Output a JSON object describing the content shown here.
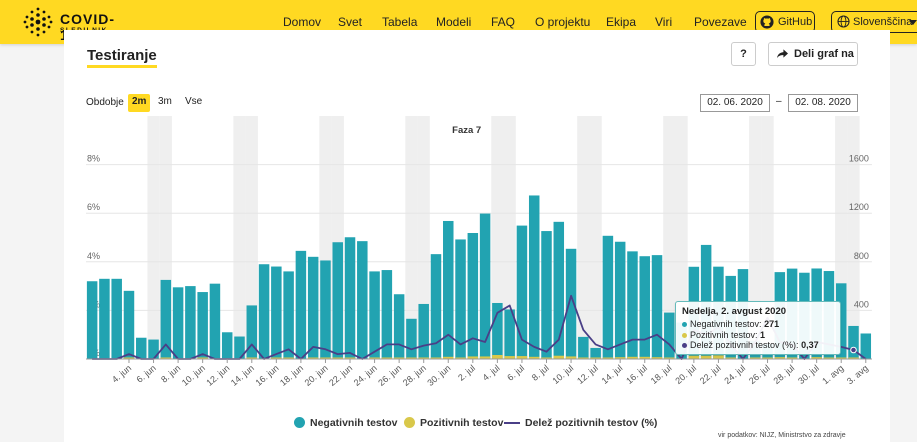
{
  "header": {
    "logo_title": "COVID-19",
    "logo_sub": "SLEDILNIK",
    "nav": [
      "Domov",
      "Svet",
      "Tabela",
      "Modeli",
      "FAQ",
      "O projektu",
      "Ekipa",
      "Viri",
      "Povezave"
    ],
    "active_nav": "Domov",
    "github_label": "GitHub",
    "language_label": "Slovenščina"
  },
  "card": {
    "title": "Testiranje",
    "help_label": "?",
    "share_label": "Deli graf na",
    "period_label": "Obdobje",
    "ranges": [
      "2m",
      "3m",
      "Vse"
    ],
    "selected_range": "2m",
    "date_from": "02. 06. 2020",
    "date_to": "02. 08. 2020",
    "date_separator": "–",
    "legend": {
      "negative": "Negativnih testov",
      "positive": "Pozitivnih testov",
      "share": "Delež pozitivnih testov (%)"
    },
    "source": "vir podatkov: NIJZ, Ministrstvo za zdravje"
  },
  "tooltip": {
    "title": "Nedelja, 2. avgust 2020",
    "negative_label": "Negativnih testov:",
    "negative_value": "271",
    "positive_label": "Pozitivnih testov:",
    "positive_value": "1",
    "share_label": "Delež pozitivnih testov (%):",
    "share_value": "0,37"
  },
  "colors": {
    "negative": "#22a3b1",
    "positive": "#d9c84a",
    "share": "#4a3f87",
    "accent": "#ffd922"
  },
  "chart_data": {
    "type": "bar",
    "plot_band_label": "Faza 7",
    "categories": [
      "1. jun",
      "2. jun",
      "3. jun",
      "4. jun",
      "5. jun",
      "6. jun",
      "7. jun",
      "8. jun",
      "9. jun",
      "10. jun",
      "11. jun",
      "12. jun",
      "13. jun",
      "14. jun",
      "15. jun",
      "16. jun",
      "17. jun",
      "18. jun",
      "19. jun",
      "20. jun",
      "21. jun",
      "22. jun",
      "23. jun",
      "24. jun",
      "25. jun",
      "26. jun",
      "27. jun",
      "28. jun",
      "29. jun",
      "30. jun",
      "1. jul",
      "2. jul",
      "3. jul",
      "4. jul",
      "5. jul",
      "6. jul",
      "7. jul",
      "8. jul",
      "9. jul",
      "10. jul",
      "11. jul",
      "12. jul",
      "13. jul",
      "14. jul",
      "15. jul",
      "16. jul",
      "17. jul",
      "18. jul",
      "19. jul",
      "20. jul",
      "21. jul",
      "22. jul",
      "23. jul",
      "24. jul",
      "25. jul",
      "26. jul",
      "27. jul",
      "28. jul",
      "29. jul",
      "30. jul",
      "31. jul",
      "1. avg",
      "2. avg",
      "3. avg"
    ],
    "x_tick_labels": [
      "4. jun",
      "6. jun",
      "8. jun",
      "10. jun",
      "12. jun",
      "14. jun",
      "16. jun",
      "18. jun",
      "20. jun",
      "22. jun",
      "24. jun",
      "26. jun",
      "28. jun",
      "30. jun",
      "2. jul",
      "4. jul",
      "6. jul",
      "8. jul",
      "10. jul",
      "12. jul",
      "14. jul",
      "16. jul",
      "18. jul",
      "20. jul",
      "22. jul",
      "24. jul",
      "26. jul",
      "28. jul",
      "30. jul",
      "1. avg",
      "3. avg"
    ],
    "weekend_bands": [
      "6. jun",
      "7. jun",
      "13. jun",
      "14. jun",
      "20. jun",
      "21. jun",
      "27. jun",
      "28. jun",
      "4. jul",
      "5. jul",
      "11. jul",
      "12. jul",
      "18. jul",
      "19. jul",
      "25. jul",
      "26. jul",
      "1. avg",
      "2. avg"
    ],
    "series": [
      {
        "name": "Negativnih testov",
        "axis": "right",
        "values": [
          640,
          660,
          660,
          560,
          175,
          160,
          650,
          590,
          600,
          550,
          620,
          220,
          185,
          440,
          780,
          760,
          720,
          890,
          840,
          810,
          960,
          1000,
          970,
          720,
          730,
          530,
          330,
          450,
          860,
          1130,
          980,
          1030,
          1190,
          450,
          400,
          1090,
          1340,
          1050,
          1120,
          900,
          180,
          90,
          1010,
          960,
          880,
          840,
          850,
          380,
          300,
          750,
          930,
          750,
          680,
          740,
          150,
          120,
          710,
          740,
          710,
          740,
          720,
          620,
          271,
          210
        ]
      },
      {
        "name": "Pozitivnih testov",
        "axis": "right",
        "values": [
          0,
          0,
          0,
          1,
          0,
          0,
          1,
          0,
          0,
          1,
          0,
          0,
          0,
          1,
          0,
          1,
          1,
          0,
          1,
          1,
          1,
          2,
          0,
          1,
          2,
          3,
          1,
          3,
          3,
          6,
          4,
          7,
          7,
          11,
          8,
          8,
          6,
          3,
          9,
          7,
          2,
          1,
          4,
          5,
          6,
          6,
          5,
          2,
          0,
          9,
          9,
          10,
          4,
          0,
          1,
          2,
          5,
          4,
          0,
          5,
          4,
          3,
          1,
          0
        ]
      },
      {
        "name": "Delež pozitivnih testov (%)",
        "axis": "left",
        "values": [
          0.0,
          0.0,
          0.0,
          0.2,
          0.0,
          0.0,
          0.6,
          0.0,
          0.0,
          0.2,
          0.0,
          0.0,
          0.0,
          0.6,
          0.0,
          0.2,
          0.4,
          0.0,
          0.5,
          0.4,
          0.2,
          0.25,
          0.0,
          0.3,
          0.6,
          0.6,
          0.4,
          0.55,
          0.65,
          1.0,
          0.6,
          0.85,
          0.7,
          1.9,
          2.2,
          0.8,
          0.5,
          0.3,
          0.8,
          2.6,
          1.2,
          0.6,
          0.4,
          0.6,
          0.8,
          0.8,
          1.0,
          0.6,
          0.0,
          1.2,
          1.0,
          1.3,
          0.6,
          0.0,
          0.7,
          1.7,
          0.7,
          0.6,
          0.0,
          0.7,
          0.6,
          0.5,
          0.37,
          0.0
        ]
      }
    ],
    "left_axis": {
      "ticks": [
        "0%",
        "2%",
        "4%",
        "6%",
        "8%"
      ],
      "ylim": [
        0,
        10
      ]
    },
    "right_axis": {
      "ticks": [
        "0",
        "400",
        "800",
        "1200",
        "1600"
      ],
      "ylim": [
        0,
        2000
      ]
    },
    "grid": true,
    "legend_position": "bottom-center"
  }
}
